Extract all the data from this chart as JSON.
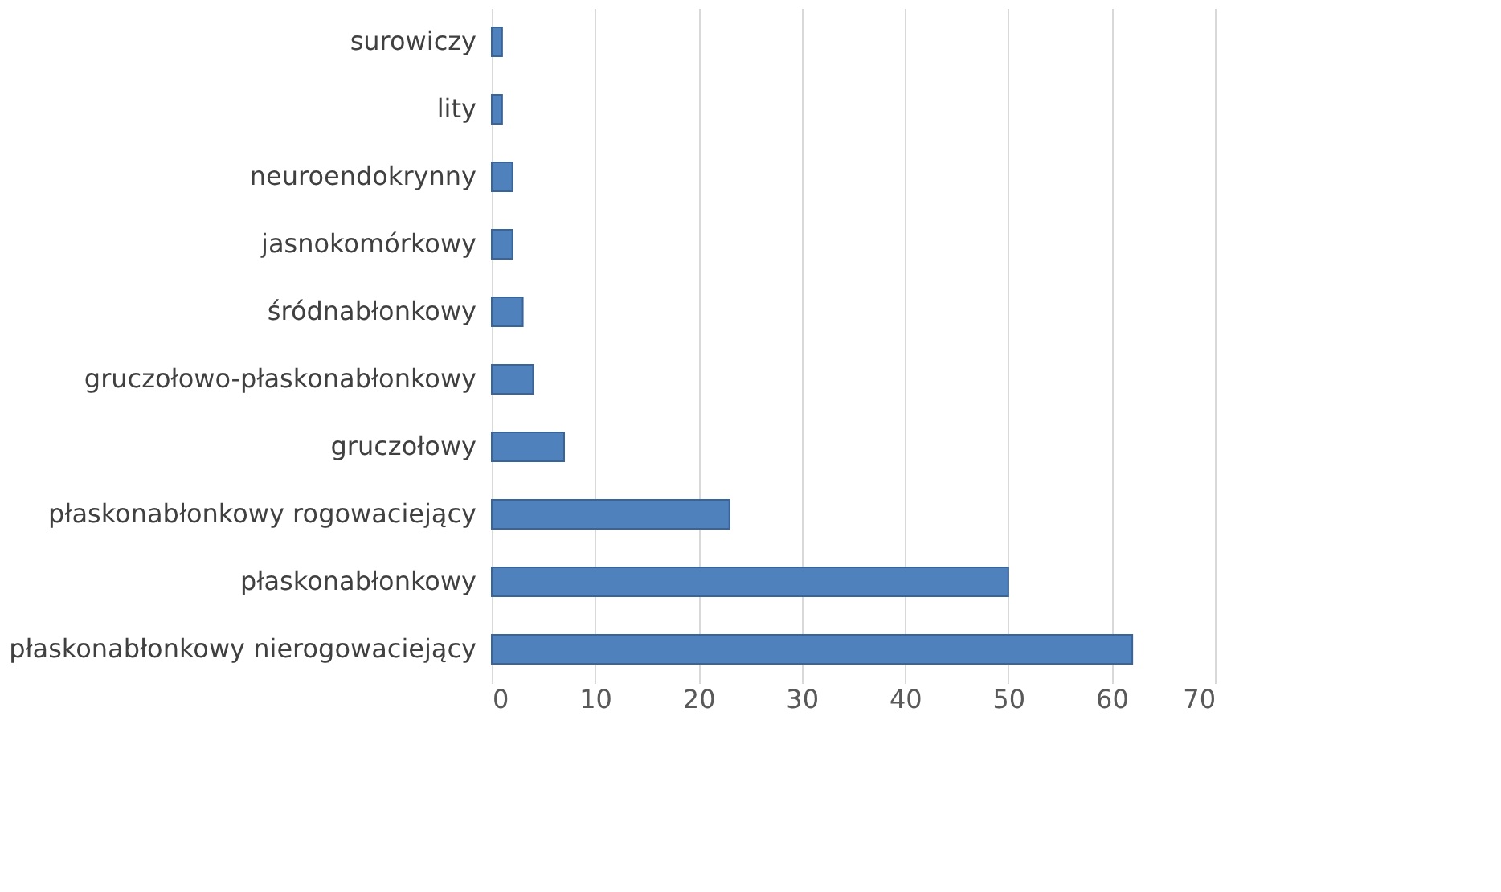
{
  "chart_data": {
    "type": "bar",
    "orientation": "horizontal",
    "categories": [
      "surowiczy",
      "lity",
      "neuroendokrynny",
      "jasnokomórkowy",
      "śródnabłonkowy",
      "gruczołowo-płaskonabłonkowy",
      "gruczołowy",
      "płaskonabłonkowy rogowaciejący",
      "płaskonabłonkowy",
      "płaskonabłonkowy nierogowaciejący"
    ],
    "values": [
      1,
      1,
      2,
      2,
      3,
      4,
      7,
      23,
      50,
      62
    ],
    "color": "#4f81bd",
    "xlim": [
      0,
      70
    ],
    "xticks": [
      0,
      10,
      20,
      30,
      40,
      50,
      60,
      70
    ],
    "grid": "x"
  }
}
